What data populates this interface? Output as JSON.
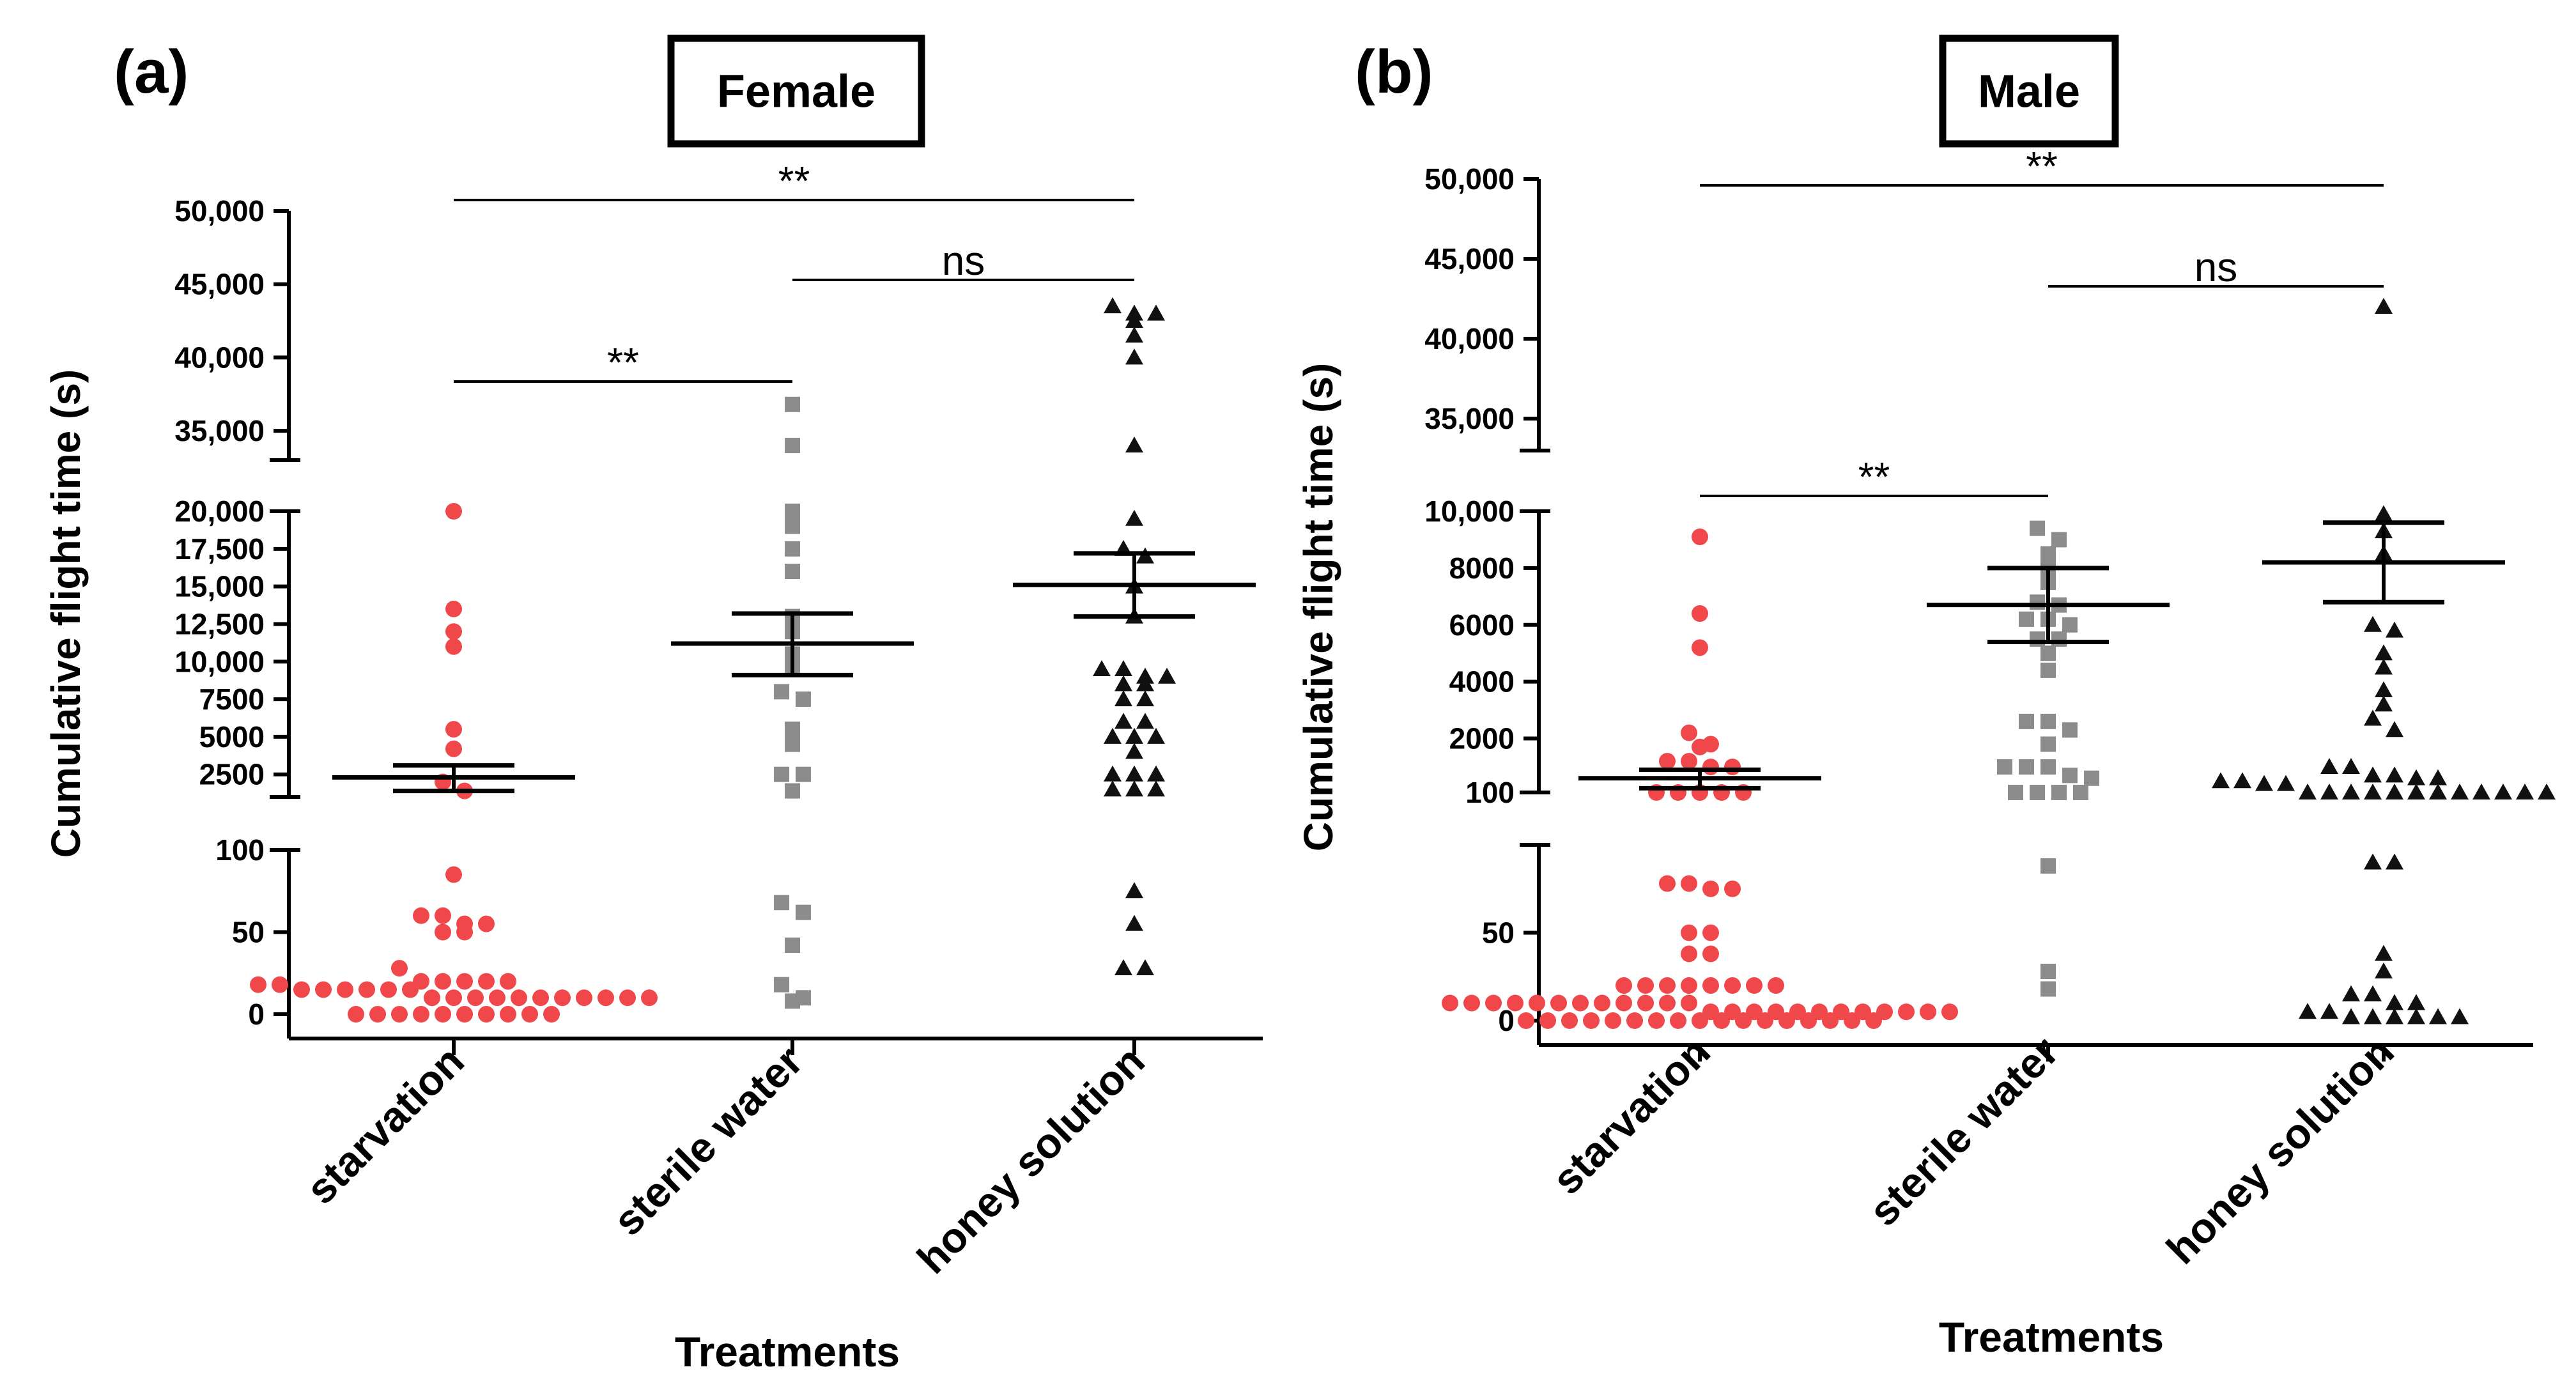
{
  "chart_data": [
    {
      "type": "scatter",
      "panel_label": "(a)",
      "title": "Female",
      "xlabel": "Treatments",
      "ylabel": "Cumulative flight time (s)",
      "categories": [
        "starvation",
        "sterile water",
        "honey solution"
      ],
      "y_segments": [
        {
          "range": [
            0,
            100
          ],
          "ticks": [
            0,
            50,
            100
          ],
          "tick_labels": [
            "0",
            "50",
            "100"
          ]
        },
        {
          "range": [
            1000,
            20000
          ],
          "ticks": [
            2500,
            5000,
            7500,
            10000,
            12500,
            15000,
            17500,
            20000
          ],
          "tick_labels": [
            "2500",
            "5000",
            "7500",
            "10,000",
            "12,500",
            "15,000",
            "17,500",
            "20,000"
          ]
        },
        {
          "range": [
            33000,
            50000
          ],
          "ticks": [
            35000,
            40000,
            45000,
            50000
          ],
          "tick_labels": [
            "35,000",
            "40,000",
            "45,000",
            "50,000"
          ]
        }
      ],
      "series": [
        {
          "name": "starvation",
          "marker": "circle",
          "color": "#f0474b",
          "mean": 2300,
          "sem_low": 1400,
          "sem_high": 3100,
          "values": [
            0,
            0,
            0,
            0,
            0,
            0,
            0,
            0,
            0,
            0,
            10,
            10,
            10,
            10,
            10,
            10,
            10,
            10,
            10,
            10,
            10,
            15,
            15,
            15,
            15,
            15,
            15,
            18,
            18,
            20,
            20,
            20,
            20,
            20,
            28,
            50,
            50,
            55,
            55,
            60,
            60,
            85,
            1400,
            2000,
            4200,
            5500,
            11000,
            12000,
            13500,
            20000
          ]
        },
        {
          "name": "sterile water",
          "marker": "square",
          "color": "#8c8c8c",
          "mean": 11200,
          "sem_low": 9100,
          "sem_high": 13200,
          "values": [
            8,
            10,
            18,
            42,
            62,
            68,
            1400,
            2500,
            2500,
            4500,
            5500,
            7500,
            8000,
            9500,
            10500,
            12000,
            13000,
            16000,
            17500,
            19000,
            20000,
            34000,
            36800
          ]
        },
        {
          "name": "honey solution",
          "marker": "triangle",
          "color": "#111111",
          "mean": 15100,
          "sem_low": 13000,
          "sem_high": 17200,
          "values": [
            28,
            28,
            55,
            75,
            1500,
            1500,
            1500,
            2500,
            2500,
            2500,
            4000,
            5000,
            5000,
            5000,
            6000,
            6000,
            7500,
            7500,
            8500,
            8500,
            9000,
            9000,
            9500,
            9500,
            13000,
            15000,
            17000,
            17500,
            19500,
            34000,
            40000,
            41500,
            42500,
            43000,
            43000,
            43500
          ]
        }
      ],
      "significance": [
        {
          "pair": [
            "starvation",
            "sterile water"
          ],
          "label": "**"
        },
        {
          "pair": [
            "sterile water",
            "honey solution"
          ],
          "label": "ns"
        },
        {
          "pair": [
            "starvation",
            "honey solution"
          ],
          "label": "**"
        }
      ]
    },
    {
      "type": "scatter",
      "panel_label": "(b)",
      "title": "Male",
      "xlabel": "Treatments",
      "ylabel": "Cumulative flight time (s)",
      "categories": [
        "starvation",
        "sterile water",
        "honey solution"
      ],
      "y_segments": [
        {
          "range": [
            0,
            100
          ],
          "ticks": [
            0,
            50,
            100
          ],
          "tick_labels": [
            "0",
            "50",
            "100"
          ]
        },
        {
          "range": [
            100,
            10000
          ],
          "ticks": [
            2000,
            4000,
            6000,
            8000,
            10000
          ],
          "tick_labels": [
            "2000",
            "4000",
            "6000",
            "8000",
            "10,000"
          ]
        },
        {
          "range": [
            33000,
            50000
          ],
          "ticks": [
            35000,
            40000,
            45000,
            50000
          ],
          "tick_labels": [
            "35,000",
            "40,000",
            "45,000",
            "50,000"
          ]
        }
      ],
      "series": [
        {
          "name": "starvation",
          "marker": "circle",
          "color": "#f0474b",
          "mean": 600,
          "sem_low": 250,
          "sem_high": 900,
          "values": [
            0,
            0,
            0,
            0,
            0,
            0,
            0,
            0,
            0,
            0,
            0,
            0,
            0,
            0,
            0,
            0,
            0,
            5,
            5,
            5,
            5,
            5,
            5,
            5,
            5,
            5,
            5,
            5,
            5,
            10,
            10,
            10,
            10,
            10,
            10,
            10,
            10,
            10,
            10,
            10,
            10,
            20,
            20,
            20,
            20,
            20,
            20,
            20,
            20,
            38,
            38,
            50,
            50,
            75,
            75,
            78,
            78,
            100,
            100,
            100,
            100,
            100,
            1000,
            1000,
            1200,
            1200,
            1700,
            1800,
            2200,
            5200,
            6400,
            9100
          ]
        },
        {
          "name": "sterile water",
          "marker": "square",
          "color": "#8c8c8c",
          "mean": 6700,
          "sem_low": 5400,
          "sem_high": 8000,
          "values": [
            18,
            28,
            88,
            100,
            100,
            100,
            100,
            600,
            700,
            1000,
            1000,
            1000,
            1800,
            2300,
            2600,
            2600,
            4400,
            5000,
            5500,
            5500,
            6000,
            6200,
            6200,
            6700,
            6800,
            7500,
            8000,
            8500,
            9000,
            9400
          ]
        },
        {
          "name": "honey solution",
          "marker": "triangle",
          "color": "#111111",
          "mean": 8200,
          "sem_low": 6800,
          "sem_high": 9600,
          "values": [
            2,
            2,
            2,
            2,
            2,
            2,
            5,
            5,
            10,
            10,
            15,
            15,
            28,
            38,
            90,
            90,
            100,
            100,
            100,
            100,
            100,
            100,
            100,
            100,
            100,
            100,
            100,
            100,
            400,
            400,
            500,
            500,
            600,
            600,
            700,
            700,
            1000,
            1000,
            2300,
            2700,
            3200,
            3700,
            4500,
            5000,
            5800,
            6000,
            8500,
            9300,
            9900,
            42000
          ]
        }
      ],
      "significance": [
        {
          "pair": [
            "starvation",
            "sterile water"
          ],
          "label": "**"
        },
        {
          "pair": [
            "sterile water",
            "honey solution"
          ],
          "label": "ns"
        },
        {
          "pair": [
            "starvation",
            "honey solution"
          ],
          "label": "**"
        }
      ]
    }
  ]
}
